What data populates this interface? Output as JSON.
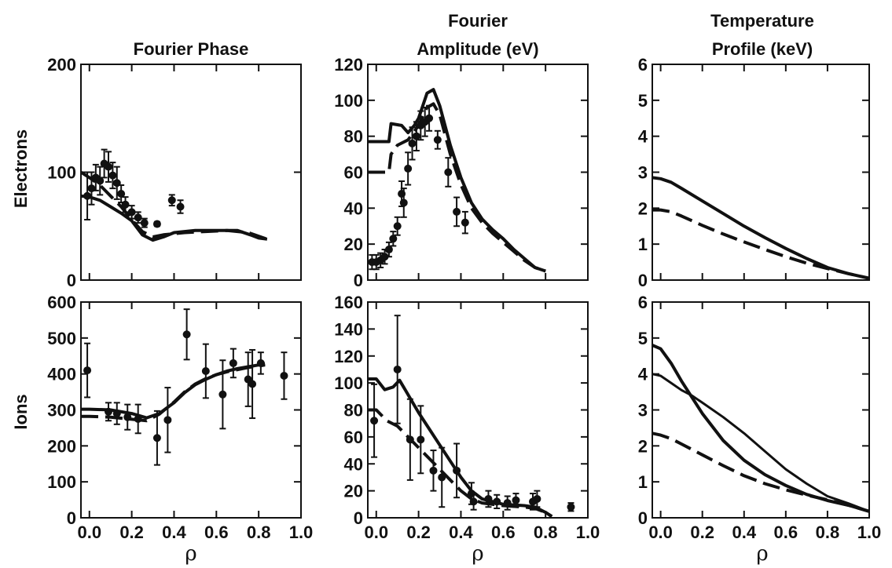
{
  "figure": {
    "column_titles": [
      [
        "Fourier Phase"
      ],
      [
        "Fourier",
        "Amplitude (eV)"
      ],
      [
        "Temperature",
        "Profile (keV)"
      ]
    ],
    "row_labels": [
      "Electrons",
      "Ions"
    ],
    "x_label": "ρ",
    "ink_color": "#111111"
  },
  "chart_data": [
    {
      "id": "electrons-phase",
      "type": "scatter",
      "title": "Fourier Phase",
      "ylabel": "Electrons",
      "xlabel": "",
      "xlim": [
        -0.04,
        1.0
      ],
      "ylim": [
        0,
        200
      ],
      "yticks": [
        0,
        100,
        200
      ],
      "xticks": [
        0.0,
        0.2,
        0.4,
        0.6,
        0.8,
        1.0
      ],
      "show_x_tick_labels": false,
      "points": [
        {
          "x": -0.01,
          "y": 78,
          "err": 22
        },
        {
          "x": 0.01,
          "y": 85,
          "err": 15
        },
        {
          "x": 0.03,
          "y": 95,
          "err": 12
        },
        {
          "x": 0.05,
          "y": 92,
          "err": 13
        },
        {
          "x": 0.07,
          "y": 108,
          "err": 13
        },
        {
          "x": 0.09,
          "y": 105,
          "err": 14
        },
        {
          "x": 0.11,
          "y": 97,
          "err": 12
        },
        {
          "x": 0.13,
          "y": 90,
          "err": 15
        },
        {
          "x": 0.15,
          "y": 80,
          "err": 8
        },
        {
          "x": 0.17,
          "y": 70,
          "err": 7
        },
        {
          "x": 0.2,
          "y": 63,
          "err": 6
        },
        {
          "x": 0.23,
          "y": 58,
          "err": 5
        },
        {
          "x": 0.26,
          "y": 53,
          "err": 4
        },
        {
          "x": 0.32,
          "y": 52,
          "err": 2
        },
        {
          "x": 0.39,
          "y": 74,
          "err": 5
        },
        {
          "x": 0.43,
          "y": 68,
          "err": 6
        }
      ],
      "solid": [
        [
          -0.04,
          78
        ],
        [
          0.0,
          77
        ],
        [
          0.05,
          74
        ],
        [
          0.1,
          68
        ],
        [
          0.15,
          62
        ],
        [
          0.2,
          55
        ],
        [
          0.25,
          42
        ],
        [
          0.3,
          37
        ],
        [
          0.35,
          40
        ],
        [
          0.4,
          44
        ],
        [
          0.5,
          46
        ],
        [
          0.6,
          46
        ],
        [
          0.7,
          46
        ],
        [
          0.76,
          42
        ],
        [
          0.8,
          39
        ],
        [
          0.84,
          38
        ]
      ],
      "dashed": [
        [
          -0.04,
          100
        ],
        [
          0.0,
          95
        ],
        [
          0.05,
          88
        ],
        [
          0.1,
          78
        ],
        [
          0.15,
          68
        ],
        [
          0.2,
          56
        ],
        [
          0.25,
          45
        ],
        [
          0.3,
          40
        ],
        [
          0.35,
          42
        ],
        [
          0.45,
          44
        ],
        [
          0.55,
          45
        ],
        [
          0.65,
          46
        ],
        [
          0.75,
          44
        ],
        [
          0.84,
          38
        ]
      ]
    },
    {
      "id": "electrons-amplitude",
      "type": "scatter",
      "title": "Fourier Amplitude (eV)",
      "ylabel": "",
      "xlabel": "",
      "xlim": [
        -0.04,
        1.0
      ],
      "ylim": [
        0,
        120
      ],
      "yticks": [
        0,
        20,
        40,
        60,
        80,
        100,
        120
      ],
      "xticks": [
        0.0,
        0.2,
        0.4,
        0.6,
        0.8,
        1.0
      ],
      "show_x_tick_labels": false,
      "points": [
        {
          "x": -0.02,
          "y": 10,
          "err": 4
        },
        {
          "x": 0.0,
          "y": 10,
          "err": 4
        },
        {
          "x": 0.02,
          "y": 11,
          "err": 4
        },
        {
          "x": 0.04,
          "y": 13,
          "err": 4
        },
        {
          "x": 0.06,
          "y": 17,
          "err": 4
        },
        {
          "x": 0.08,
          "y": 23,
          "err": 4
        },
        {
          "x": 0.1,
          "y": 30,
          "err": 5
        },
        {
          "x": 0.12,
          "y": 48,
          "err": 7
        },
        {
          "x": 0.13,
          "y": 43,
          "err": 8
        },
        {
          "x": 0.15,
          "y": 62,
          "err": 9
        },
        {
          "x": 0.17,
          "y": 76,
          "err": 9
        },
        {
          "x": 0.19,
          "y": 80,
          "err": 8
        },
        {
          "x": 0.21,
          "y": 86,
          "err": 8
        },
        {
          "x": 0.23,
          "y": 88,
          "err": 8
        },
        {
          "x": 0.25,
          "y": 90,
          "err": 7
        },
        {
          "x": 0.29,
          "y": 78,
          "err": 5
        },
        {
          "x": 0.34,
          "y": 60,
          "err": 8
        },
        {
          "x": 0.38,
          "y": 38,
          "err": 8
        },
        {
          "x": 0.42,
          "y": 32,
          "err": 6
        }
      ],
      "solid": [
        [
          -0.04,
          77
        ],
        [
          0.0,
          77
        ],
        [
          0.06,
          77
        ],
        [
          0.07,
          87
        ],
        [
          0.12,
          86
        ],
        [
          0.15,
          82
        ],
        [
          0.18,
          86
        ],
        [
          0.2,
          90
        ],
        [
          0.24,
          104
        ],
        [
          0.27,
          106
        ],
        [
          0.3,
          97
        ],
        [
          0.35,
          75
        ],
        [
          0.4,
          57
        ],
        [
          0.45,
          43
        ],
        [
          0.5,
          34
        ],
        [
          0.55,
          28
        ],
        [
          0.6,
          23
        ],
        [
          0.65,
          17
        ],
        [
          0.7,
          12
        ],
        [
          0.75,
          7
        ],
        [
          0.8,
          5
        ]
      ],
      "dashed": [
        [
          -0.04,
          60
        ],
        [
          0.0,
          60
        ],
        [
          0.06,
          60
        ],
        [
          0.07,
          70
        ],
        [
          0.1,
          75
        ],
        [
          0.15,
          78
        ],
        [
          0.2,
          86
        ],
        [
          0.24,
          96
        ],
        [
          0.27,
          98
        ],
        [
          0.3,
          92
        ],
        [
          0.35,
          70
        ],
        [
          0.4,
          53
        ],
        [
          0.45,
          40
        ],
        [
          0.5,
          32
        ],
        [
          0.55,
          26
        ],
        [
          0.6,
          21
        ],
        [
          0.65,
          16
        ],
        [
          0.7,
          11
        ],
        [
          0.75,
          7
        ],
        [
          0.8,
          5
        ]
      ]
    },
    {
      "id": "electrons-temperature",
      "type": "line",
      "title": "Temperature Profile (keV)",
      "ylabel": "",
      "xlabel": "",
      "xlim": [
        -0.04,
        1.0
      ],
      "ylim": [
        0,
        6
      ],
      "yticks": [
        0,
        1,
        2,
        3,
        4,
        5,
        6
      ],
      "xticks": [
        0.0,
        0.2,
        0.4,
        0.6,
        0.8,
        1.0
      ],
      "show_x_tick_labels": false,
      "points": [],
      "solid": [
        [
          -0.04,
          2.85
        ],
        [
          0.0,
          2.82
        ],
        [
          0.05,
          2.72
        ],
        [
          0.1,
          2.55
        ],
        [
          0.2,
          2.2
        ],
        [
          0.3,
          1.85
        ],
        [
          0.4,
          1.5
        ],
        [
          0.5,
          1.18
        ],
        [
          0.6,
          0.88
        ],
        [
          0.7,
          0.6
        ],
        [
          0.8,
          0.35
        ],
        [
          0.9,
          0.18
        ],
        [
          1.0,
          0.05
        ]
      ],
      "dashed": [
        [
          -0.04,
          1.95
        ],
        [
          0.0,
          1.95
        ],
        [
          0.05,
          1.9
        ],
        [
          0.1,
          1.78
        ],
        [
          0.2,
          1.52
        ],
        [
          0.3,
          1.28
        ],
        [
          0.4,
          1.06
        ],
        [
          0.5,
          0.85
        ],
        [
          0.6,
          0.65
        ],
        [
          0.7,
          0.47
        ],
        [
          0.8,
          0.32
        ],
        [
          0.9,
          0.18
        ],
        [
          1.0,
          0.05
        ]
      ]
    },
    {
      "id": "ions-phase",
      "type": "scatter",
      "title": "",
      "ylabel": "Ions",
      "xlabel": "ρ",
      "xlim": [
        -0.04,
        1.0
      ],
      "ylim": [
        0,
        600
      ],
      "yticks": [
        0,
        100,
        200,
        300,
        400,
        500,
        600
      ],
      "xticks": [
        0.0,
        0.2,
        0.4,
        0.6,
        0.8,
        1.0
      ],
      "show_x_tick_labels": true,
      "points": [
        {
          "x": -0.01,
          "y": 410,
          "err": 75
        },
        {
          "x": 0.09,
          "y": 295,
          "err": 25
        },
        {
          "x": 0.13,
          "y": 290,
          "err": 30
        },
        {
          "x": 0.18,
          "y": 280,
          "err": 35
        },
        {
          "x": 0.23,
          "y": 275,
          "err": 40
        },
        {
          "x": 0.32,
          "y": 222,
          "err": 75
        },
        {
          "x": 0.37,
          "y": 272,
          "err": 90
        },
        {
          "x": 0.46,
          "y": 510,
          "err": 70
        },
        {
          "x": 0.55,
          "y": 408,
          "err": 75
        },
        {
          "x": 0.63,
          "y": 343,
          "err": 95
        },
        {
          "x": 0.68,
          "y": 430,
          "err": 40
        },
        {
          "x": 0.75,
          "y": 385,
          "err": 75
        },
        {
          "x": 0.77,
          "y": 372,
          "err": 95
        },
        {
          "x": 0.81,
          "y": 430,
          "err": 30
        },
        {
          "x": 0.92,
          "y": 395,
          "err": 65
        }
      ],
      "solid": [
        [
          -0.04,
          302
        ],
        [
          0.0,
          302
        ],
        [
          0.1,
          300
        ],
        [
          0.2,
          290
        ],
        [
          0.27,
          278
        ],
        [
          0.33,
          290
        ],
        [
          0.4,
          320
        ],
        [
          0.45,
          348
        ],
        [
          0.5,
          370
        ],
        [
          0.55,
          385
        ],
        [
          0.6,
          398
        ],
        [
          0.65,
          408
        ],
        [
          0.7,
          415
        ],
        [
          0.75,
          420
        ],
        [
          0.8,
          425
        ],
        [
          0.83,
          428
        ]
      ],
      "dashed": [
        [
          -0.04,
          282
        ],
        [
          0.0,
          282
        ],
        [
          0.1,
          280
        ],
        [
          0.2,
          274
        ],
        [
          0.27,
          270
        ],
        [
          0.33,
          288
        ],
        [
          0.4,
          322
        ],
        [
          0.45,
          350
        ],
        [
          0.5,
          372
        ],
        [
          0.55,
          387
        ],
        [
          0.6,
          398
        ],
        [
          0.65,
          406
        ],
        [
          0.7,
          412
        ],
        [
          0.75,
          418
        ],
        [
          0.8,
          422
        ],
        [
          0.83,
          425
        ]
      ]
    },
    {
      "id": "ions-amplitude",
      "type": "scatter",
      "title": "",
      "ylabel": "",
      "xlabel": "ρ",
      "xlim": [
        -0.04,
        1.0
      ],
      "ylim": [
        0,
        160
      ],
      "yticks": [
        0,
        20,
        40,
        60,
        80,
        100,
        120,
        140,
        160
      ],
      "xticks": [
        0.0,
        0.2,
        0.4,
        0.6,
        0.8,
        1.0
      ],
      "show_x_tick_labels": true,
      "points": [
        {
          "x": -0.01,
          "y": 72,
          "err": 27
        },
        {
          "x": 0.1,
          "y": 110,
          "err": 40
        },
        {
          "x": 0.16,
          "y": 58,
          "err": 30
        },
        {
          "x": 0.21,
          "y": 58,
          "err": 25
        },
        {
          "x": 0.27,
          "y": 35,
          "err": 15
        },
        {
          "x": 0.31,
          "y": 30,
          "err": 22
        },
        {
          "x": 0.38,
          "y": 35,
          "err": 20
        },
        {
          "x": 0.45,
          "y": 18,
          "err": 8
        },
        {
          "x": 0.46,
          "y": 12,
          "err": 6
        },
        {
          "x": 0.53,
          "y": 14,
          "err": 6
        },
        {
          "x": 0.57,
          "y": 12,
          "err": 5
        },
        {
          "x": 0.62,
          "y": 11,
          "err": 5
        },
        {
          "x": 0.66,
          "y": 13,
          "err": 5
        },
        {
          "x": 0.74,
          "y": 12,
          "err": 6
        },
        {
          "x": 0.76,
          "y": 14,
          "err": 6
        },
        {
          "x": 0.92,
          "y": 8,
          "err": 3
        }
      ],
      "solid": [
        [
          -0.04,
          103
        ],
        [
          0.0,
          103
        ],
        [
          0.04,
          95
        ],
        [
          0.08,
          97
        ],
        [
          0.11,
          102
        ],
        [
          0.14,
          94
        ],
        [
          0.2,
          78
        ],
        [
          0.25,
          66
        ],
        [
          0.3,
          54
        ],
        [
          0.35,
          42
        ],
        [
          0.4,
          30
        ],
        [
          0.45,
          20
        ],
        [
          0.5,
          14
        ],
        [
          0.6,
          10
        ],
        [
          0.7,
          9
        ],
        [
          0.75,
          8
        ],
        [
          0.8,
          4
        ],
        [
          0.83,
          1
        ]
      ],
      "dashed": [
        [
          -0.04,
          80
        ],
        [
          0.0,
          80
        ],
        [
          0.05,
          72
        ],
        [
          0.1,
          68
        ],
        [
          0.15,
          60
        ],
        [
          0.2,
          52
        ],
        [
          0.25,
          44
        ],
        [
          0.3,
          36
        ],
        [
          0.35,
          28
        ],
        [
          0.4,
          20
        ],
        [
          0.45,
          14
        ],
        [
          0.5,
          11
        ],
        [
          0.6,
          9
        ],
        [
          0.7,
          8
        ],
        [
          0.75,
          7
        ],
        [
          0.8,
          4
        ],
        [
          0.83,
          1
        ]
      ]
    },
    {
      "id": "ions-temperature",
      "type": "line",
      "title": "",
      "ylabel": "",
      "xlabel": "ρ",
      "xlim": [
        -0.04,
        1.0
      ],
      "ylim": [
        0,
        6
      ],
      "yticks": [
        0,
        1,
        2,
        3,
        4,
        5,
        6
      ],
      "xticks": [
        0.0,
        0.2,
        0.4,
        0.6,
        0.8,
        1.0
      ],
      "show_x_tick_labels": true,
      "points": [],
      "solid": [
        [
          -0.04,
          4.8
        ],
        [
          0.0,
          4.7
        ],
        [
          0.05,
          4.3
        ],
        [
          0.1,
          3.8
        ],
        [
          0.2,
          2.9
        ],
        [
          0.3,
          2.15
        ],
        [
          0.4,
          1.6
        ],
        [
          0.5,
          1.2
        ],
        [
          0.6,
          0.9
        ],
        [
          0.7,
          0.65
        ],
        [
          0.8,
          0.48
        ],
        [
          0.9,
          0.35
        ],
        [
          1.0,
          0.18
        ]
      ],
      "solid2": [
        [
          -0.04,
          4.0
        ],
        [
          0.0,
          3.95
        ],
        [
          0.05,
          3.75
        ],
        [
          0.1,
          3.55
        ],
        [
          0.15,
          3.4
        ],
        [
          0.2,
          3.2
        ],
        [
          0.3,
          2.8
        ],
        [
          0.4,
          2.35
        ],
        [
          0.5,
          1.85
        ],
        [
          0.6,
          1.35
        ],
        [
          0.7,
          0.95
        ],
        [
          0.8,
          0.6
        ],
        [
          0.9,
          0.4
        ],
        [
          1.0,
          0.18
        ]
      ],
      "dashed": [
        [
          -0.04,
          2.35
        ],
        [
          0.0,
          2.3
        ],
        [
          0.05,
          2.2
        ],
        [
          0.1,
          2.05
        ],
        [
          0.2,
          1.75
        ],
        [
          0.3,
          1.45
        ],
        [
          0.4,
          1.17
        ],
        [
          0.5,
          0.95
        ],
        [
          0.6,
          0.78
        ],
        [
          0.7,
          0.63
        ],
        [
          0.8,
          0.5
        ],
        [
          0.9,
          0.35
        ],
        [
          1.0,
          0.18
        ]
      ]
    }
  ]
}
